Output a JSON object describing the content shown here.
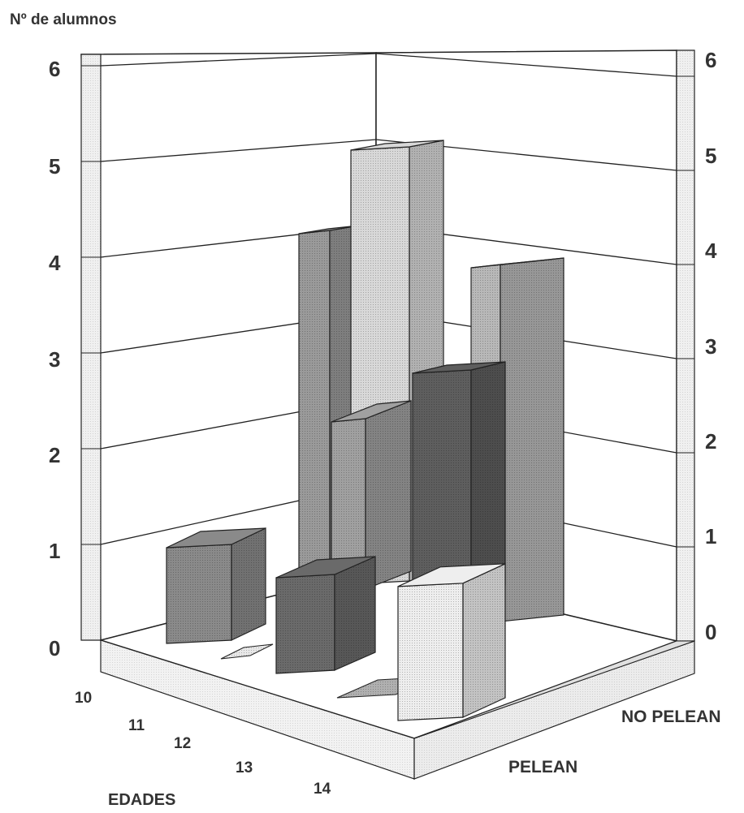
{
  "chart_data": {
    "type": "bar",
    "projection": "3d",
    "title": "",
    "ylabel": "Nº de alumnos",
    "xlabel": "EDADES",
    "ylim": [
      0,
      6
    ],
    "y_ticks": [
      "0",
      "1",
      "2",
      "3",
      "4",
      "5",
      "6"
    ],
    "categories": [
      "10",
      "11",
      "12",
      "13",
      "14"
    ],
    "series": [
      {
        "name": "PELEAN",
        "values": [
          1,
          0,
          1,
          0,
          1.4
        ]
      },
      {
        "name": "NO PELEAN",
        "values": [
          4,
          5,
          2,
          2.5,
          4
        ]
      }
    ],
    "grid": true
  }
}
